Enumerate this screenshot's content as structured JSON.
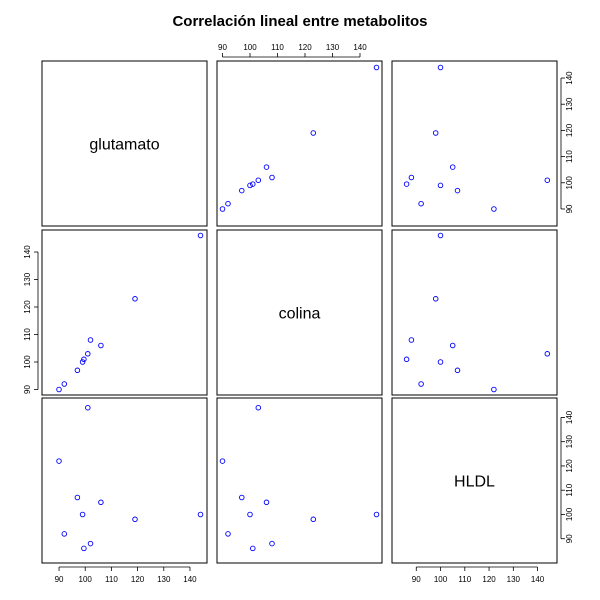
{
  "chart_data": {
    "type": "scatter-matrix",
    "title": "Correlación lineal entre metabolitos",
    "variables": [
      {
        "name": "glutamato",
        "values": [
          90,
          92,
          97,
          99,
          99.5,
          101,
          102,
          106,
          119,
          144
        ]
      },
      {
        "name": "colina",
        "values": [
          90,
          92,
          97,
          100,
          101,
          103,
          108,
          106,
          123,
          146
        ]
      },
      {
        "name": "HLDL",
        "values": [
          122,
          92,
          107,
          100,
          86,
          144,
          88,
          105,
          98,
          100
        ]
      }
    ],
    "axes": {
      "glutamato": {
        "range": [
          83.5,
          146.5
        ],
        "ticks": [
          90,
          100,
          110,
          120,
          130,
          140
        ]
      },
      "colina": {
        "range": [
          88,
          148
        ],
        "ticks": [
          90,
          100,
          110,
          120,
          130,
          140
        ]
      },
      "HLDL": {
        "range": [
          80,
          148
        ],
        "ticks": [
          90,
          100,
          110,
          120,
          130,
          140
        ]
      }
    },
    "point_color": "#0000ff"
  }
}
